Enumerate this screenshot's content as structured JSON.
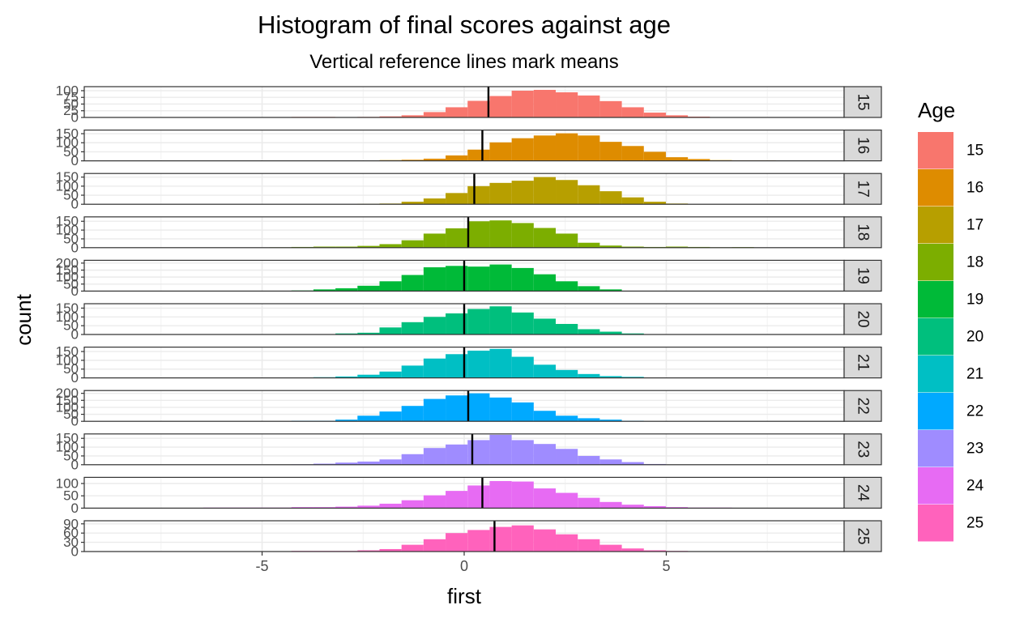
{
  "chart_data": {
    "type": "bar",
    "title": "Histogram of final scores against age",
    "subtitle": "Vertical reference lines mark means",
    "xlabel": "first",
    "ylabel": "count",
    "x_ticks": [
      "-5",
      "0",
      "5"
    ],
    "x_tick_values": [
      -5,
      0,
      5
    ],
    "xlim": [
      -9.4,
      9.4
    ],
    "bin_start": -7.0,
    "bin_width": 0.545,
    "grid": true,
    "legend": {
      "title": "Age",
      "position": "right"
    },
    "panels": [
      {
        "label": "15",
        "color": "#F8766D",
        "ylim": [
          0,
          115
        ],
        "y_ticks": [
          "0",
          "25",
          "50",
          "75",
          "100"
        ],
        "y_tick_values": [
          0,
          25,
          50,
          75,
          100
        ],
        "mean": 0.6,
        "counts": [
          0,
          0,
          0,
          0,
          0,
          2,
          2,
          0,
          2,
          4,
          8,
          20,
          38,
          62,
          80,
          100,
          103,
          94,
          82,
          61,
          38,
          18,
          8,
          3,
          0,
          0,
          0,
          0,
          0,
          0
        ]
      },
      {
        "label": "16",
        "color": "#DE8C00",
        "ylim": [
          0,
          170
        ],
        "y_ticks": [
          "0",
          "50",
          "100",
          "150"
        ],
        "y_tick_values": [
          0,
          50,
          100,
          150
        ],
        "mean": 0.45,
        "counts": [
          0,
          0,
          0,
          0,
          0,
          2,
          2,
          2,
          2,
          4,
          6,
          12,
          30,
          62,
          102,
          125,
          140,
          152,
          140,
          105,
          82,
          50,
          20,
          10,
          4,
          3,
          3,
          0,
          0,
          0
        ]
      },
      {
        "label": "17",
        "color": "#B79F00",
        "ylim": [
          0,
          170
        ],
        "y_ticks": [
          "0",
          "50",
          "100",
          "150"
        ],
        "y_tick_values": [
          0,
          50,
          100,
          150
        ],
        "mean": 0.25,
        "counts": [
          0,
          0,
          0,
          0,
          0,
          0,
          0,
          0,
          2,
          4,
          14,
          32,
          62,
          100,
          118,
          130,
          150,
          134,
          105,
          72,
          38,
          14,
          4,
          0,
          0,
          0,
          0,
          0,
          0,
          0
        ]
      },
      {
        "label": "18",
        "color": "#7CAE00",
        "ylim": [
          0,
          175
        ],
        "y_ticks": [
          "0",
          "50",
          "100",
          "150"
        ],
        "y_tick_values": [
          0,
          50,
          100,
          150
        ],
        "mean": 0.1,
        "counts": [
          0,
          0,
          0,
          0,
          2,
          4,
          6,
          6,
          10,
          20,
          42,
          80,
          110,
          150,
          155,
          140,
          112,
          80,
          28,
          12,
          6,
          4,
          6,
          4,
          2,
          3,
          0,
          0,
          0,
          0
        ]
      },
      {
        "label": "19",
        "color": "#00BA38",
        "ylim": [
          0,
          220
        ],
        "y_ticks": [
          "0",
          "50",
          "100",
          "150",
          "200"
        ],
        "y_tick_values": [
          0,
          50,
          100,
          150,
          200
        ],
        "mean": 0.0,
        "counts": [
          0,
          0,
          0,
          0,
          0,
          4,
          12,
          20,
          38,
          70,
          115,
          170,
          180,
          175,
          190,
          165,
          120,
          70,
          35,
          12,
          2,
          0,
          0,
          0,
          0,
          0,
          0,
          0,
          0,
          0
        ]
      },
      {
        "label": "20",
        "color": "#00BF7D",
        "ylim": [
          0,
          175
        ],
        "y_ticks": [
          "0",
          "50",
          "100",
          "150"
        ],
        "y_tick_values": [
          0,
          50,
          100,
          150
        ],
        "mean": 0.0,
        "counts": [
          0,
          0,
          0,
          0,
          2,
          2,
          0,
          6,
          10,
          40,
          70,
          100,
          120,
          145,
          160,
          125,
          90,
          60,
          30,
          16,
          6,
          2,
          2,
          2,
          0,
          0,
          0,
          0,
          0,
          0
        ]
      },
      {
        "label": "21",
        "color": "#00BFC4",
        "ylim": [
          0,
          175
        ],
        "y_ticks": [
          "0",
          "50",
          "100",
          "150"
        ],
        "y_tick_values": [
          0,
          50,
          100,
          150
        ],
        "mean": 0.0,
        "counts": [
          0,
          0,
          0,
          0,
          2,
          2,
          4,
          8,
          18,
          36,
          70,
          110,
          135,
          155,
          165,
          120,
          75,
          45,
          22,
          10,
          6,
          2,
          0,
          0,
          0,
          0,
          0,
          0,
          0,
          0
        ]
      },
      {
        "label": "22",
        "color": "#00A9FF",
        "ylim": [
          0,
          220
        ],
        "y_ticks": [
          "0",
          "50",
          "100",
          "150",
          "200"
        ],
        "y_tick_values": [
          0,
          50,
          100,
          150,
          200
        ],
        "mean": 0.1,
        "counts": [
          0,
          0,
          0,
          0,
          0,
          4,
          4,
          12,
          40,
          70,
          110,
          160,
          185,
          200,
          170,
          135,
          75,
          40,
          22,
          12,
          4,
          0,
          0,
          0,
          0,
          0,
          0,
          0,
          0,
          0
        ]
      },
      {
        "label": "23",
        "color": "#9F8CFF",
        "ylim": [
          0,
          175
        ],
        "y_ticks": [
          "0",
          "50",
          "100",
          "150"
        ],
        "y_tick_values": [
          0,
          50,
          100,
          150
        ],
        "mean": 0.2,
        "counts": [
          0,
          0,
          0,
          0,
          0,
          2,
          6,
          12,
          18,
          30,
          60,
          95,
          115,
          140,
          170,
          140,
          118,
          90,
          50,
          30,
          15,
          4,
          0,
          0,
          0,
          0,
          0,
          0,
          0,
          0
        ]
      },
      {
        "label": "24",
        "color": "#E76BF3",
        "ylim": [
          0,
          125
        ],
        "y_ticks": [
          "0",
          "50",
          "100"
        ],
        "y_tick_values": [
          0,
          50,
          100
        ],
        "mean": 0.45,
        "counts": [
          0,
          2,
          2,
          2,
          2,
          4,
          4,
          6,
          10,
          18,
          32,
          52,
          70,
          92,
          110,
          108,
          80,
          62,
          42,
          25,
          14,
          8,
          4,
          2,
          2,
          0,
          0,
          0,
          0,
          0
        ]
      },
      {
        "label": "25",
        "color": "#FF62BC",
        "ylim": [
          0,
          100
        ],
        "y_ticks": [
          "0",
          "30",
          "60",
          "90"
        ],
        "y_tick_values": [
          0,
          30,
          60,
          90
        ],
        "mean": 0.75,
        "counts": [
          0,
          0,
          0,
          0,
          0,
          2,
          2,
          2,
          4,
          8,
          22,
          40,
          60,
          70,
          80,
          85,
          72,
          56,
          40,
          22,
          10,
          4,
          2,
          0,
          0,
          0,
          0,
          0,
          0,
          0
        ]
      }
    ]
  }
}
